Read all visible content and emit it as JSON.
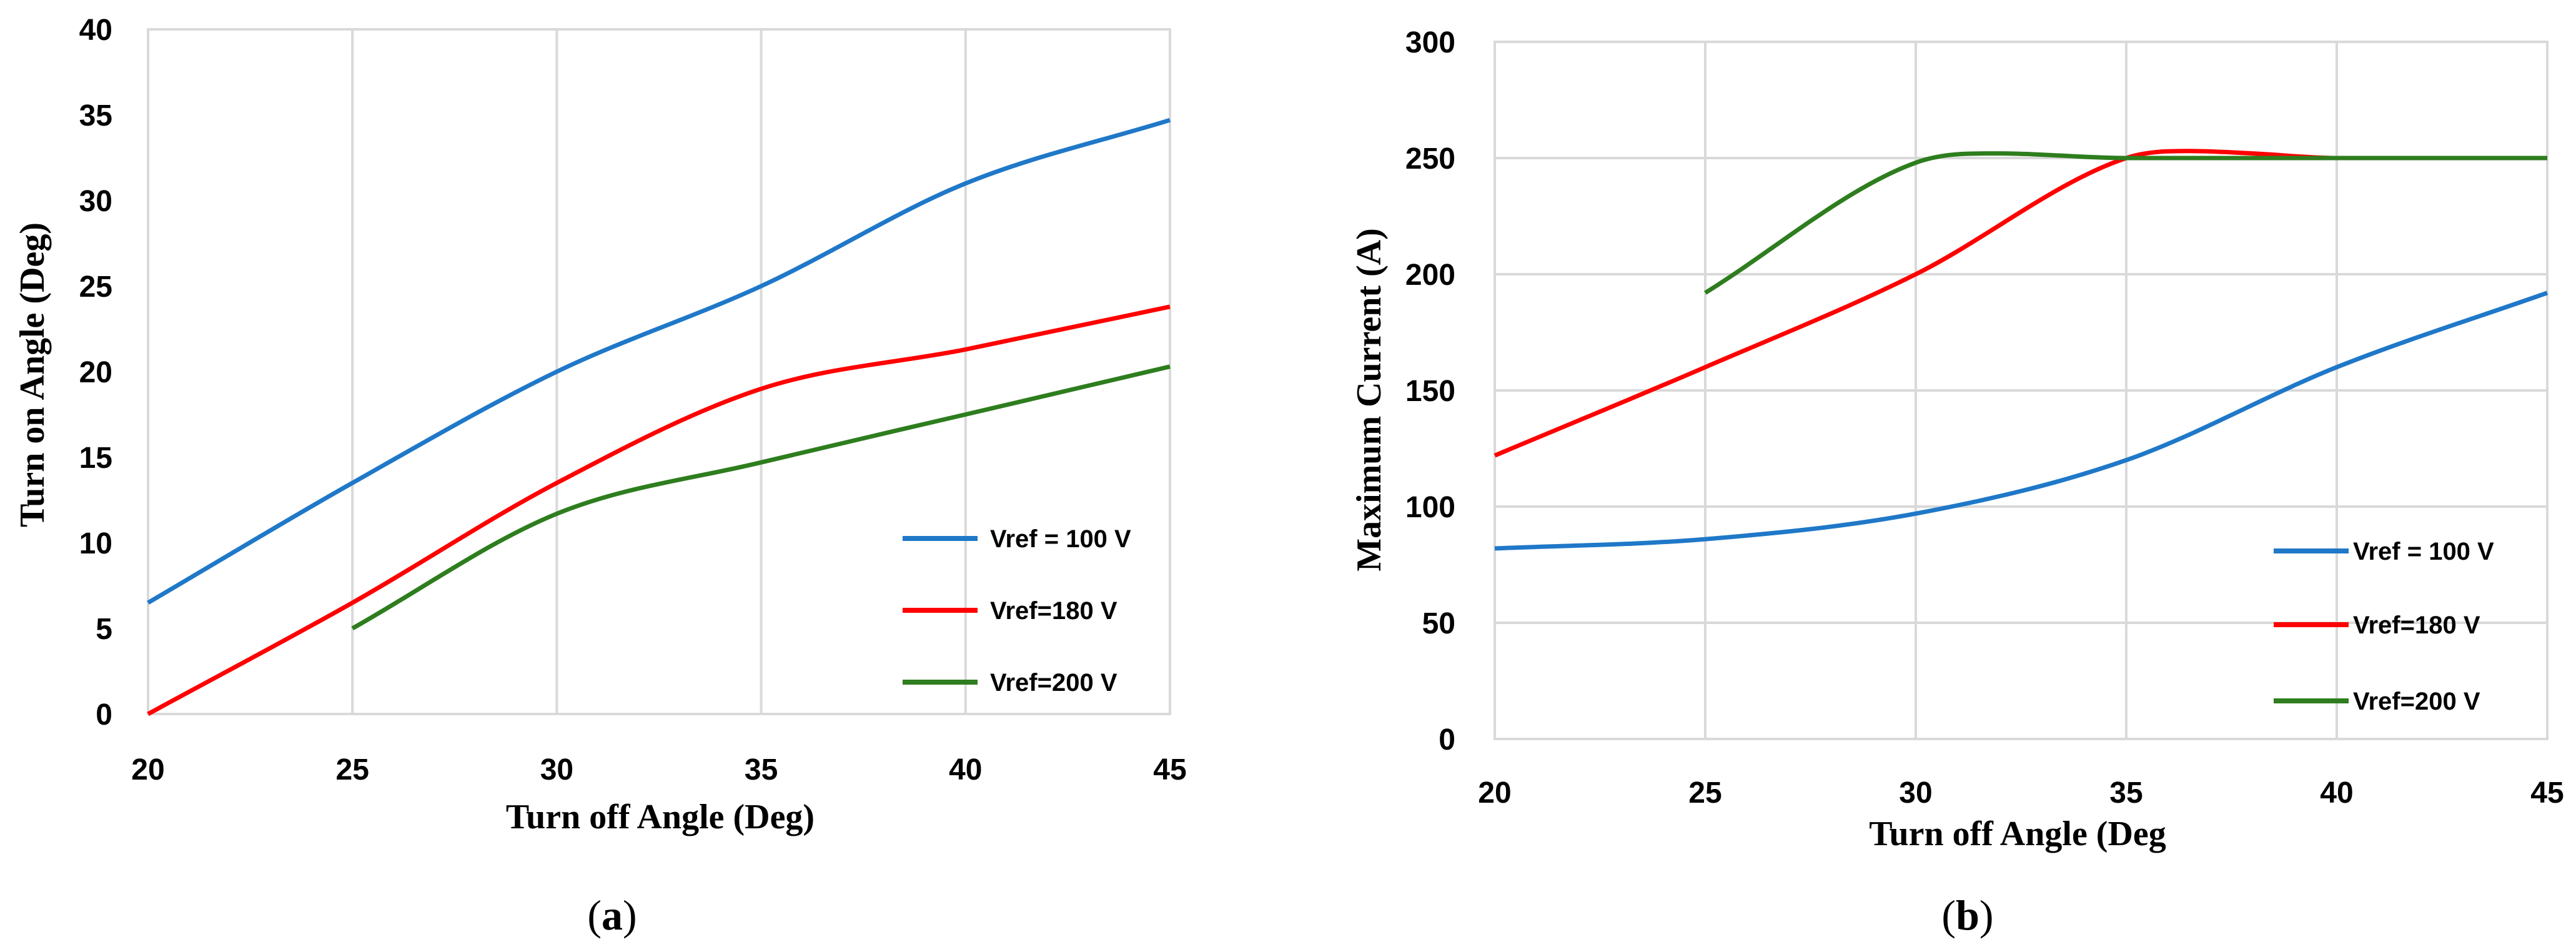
{
  "chart_data": [
    {
      "type": "line",
      "panel": "a",
      "panel_label": {
        "open": "(",
        "letter": "a",
        "close": ")"
      },
      "title": "",
      "xlabel": "Turn off Angle (Deg)",
      "ylabel": "Turn on Angle (Deg)",
      "xlim": [
        20,
        45
      ],
      "ylim": [
        0,
        40
      ],
      "xticks": [
        20,
        25,
        30,
        35,
        40,
        45
      ],
      "yticks": [
        0,
        5,
        10,
        15,
        20,
        25,
        30,
        35,
        40
      ],
      "grid": "vertical",
      "legend_position": "lower-right",
      "series": [
        {
          "name": "Vref = 100 V",
          "color": "#1f78c8",
          "x": [
            20,
            25,
            30,
            35,
            40,
            45
          ],
          "y": [
            6.5,
            13.5,
            20.0,
            25.0,
            31.0,
            34.7
          ]
        },
        {
          "name": "Vref=180 V",
          "color": "#ff0000",
          "x": [
            20,
            25,
            30,
            35,
            40,
            45
          ],
          "y": [
            0.0,
            6.5,
            13.5,
            19.0,
            21.3,
            23.8
          ]
        },
        {
          "name": "Vref=200 V",
          "color": "#2e7d1e",
          "x": [
            25,
            30,
            35,
            40,
            45
          ],
          "y": [
            5.0,
            11.7,
            14.7,
            17.5,
            20.3
          ]
        }
      ]
    },
    {
      "type": "line",
      "panel": "b",
      "panel_label": {
        "open": "(",
        "letter": "b",
        "close": ")"
      },
      "title": "",
      "xlabel": "Turn off Angle (Deg",
      "ylabel": "Maximum Current (A)",
      "xlim": [
        20,
        45
      ],
      "ylim": [
        0,
        300
      ],
      "xticks": [
        20,
        25,
        30,
        35,
        40,
        45
      ],
      "yticks": [
        0,
        50,
        100,
        150,
        200,
        250,
        300
      ],
      "grid": "both",
      "legend_position": "lower-right",
      "series": [
        {
          "name": "Vref = 100 V",
          "color": "#1f78c8",
          "x": [
            20,
            25,
            30,
            35,
            40,
            45
          ],
          "y": [
            82,
            86,
            97,
            120,
            160,
            192
          ]
        },
        {
          "name": "Vref=180 V",
          "color": "#ff0000",
          "x": [
            20,
            25,
            30,
            35,
            36.5,
            38,
            40,
            45
          ],
          "y": [
            122,
            160,
            200,
            250,
            253,
            252,
            250,
            250
          ]
        },
        {
          "name": "Vref=200 V",
          "color": "#2e7d1e",
          "x": [
            25,
            30,
            32,
            35,
            40,
            45
          ],
          "y": [
            192,
            248,
            252,
            250,
            250,
            250
          ]
        }
      ]
    }
  ]
}
